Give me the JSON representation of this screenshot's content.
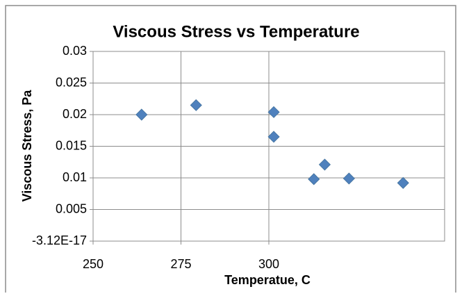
{
  "chart_data": {
    "type": "scatter",
    "title": "Viscous Stress vs Temperature",
    "x_label": "Temperatue, C",
    "y_label": "Viscous Stress, Pa",
    "color": "#4f81bd",
    "x": [
      263.8,
      279.3,
      301.4,
      301.4,
      312.8,
      315.9,
      322.8,
      338.2
    ],
    "values": [
      0.02,
      0.0215,
      0.0204,
      0.0165,
      0.0098,
      0.0121,
      0.0099,
      0.0092
    ],
    "xlim": [
      250,
      350
    ],
    "xticks": [
      250,
      275,
      300
    ],
    "ylim": [
      -3.12e-17,
      0.03
    ],
    "yticks": [
      {
        "value": -3.12e-17,
        "label": "-3.12E-17"
      },
      0.005,
      0.01,
      0.015,
      0.02,
      0.025,
      0.03
    ],
    "grid": true
  }
}
